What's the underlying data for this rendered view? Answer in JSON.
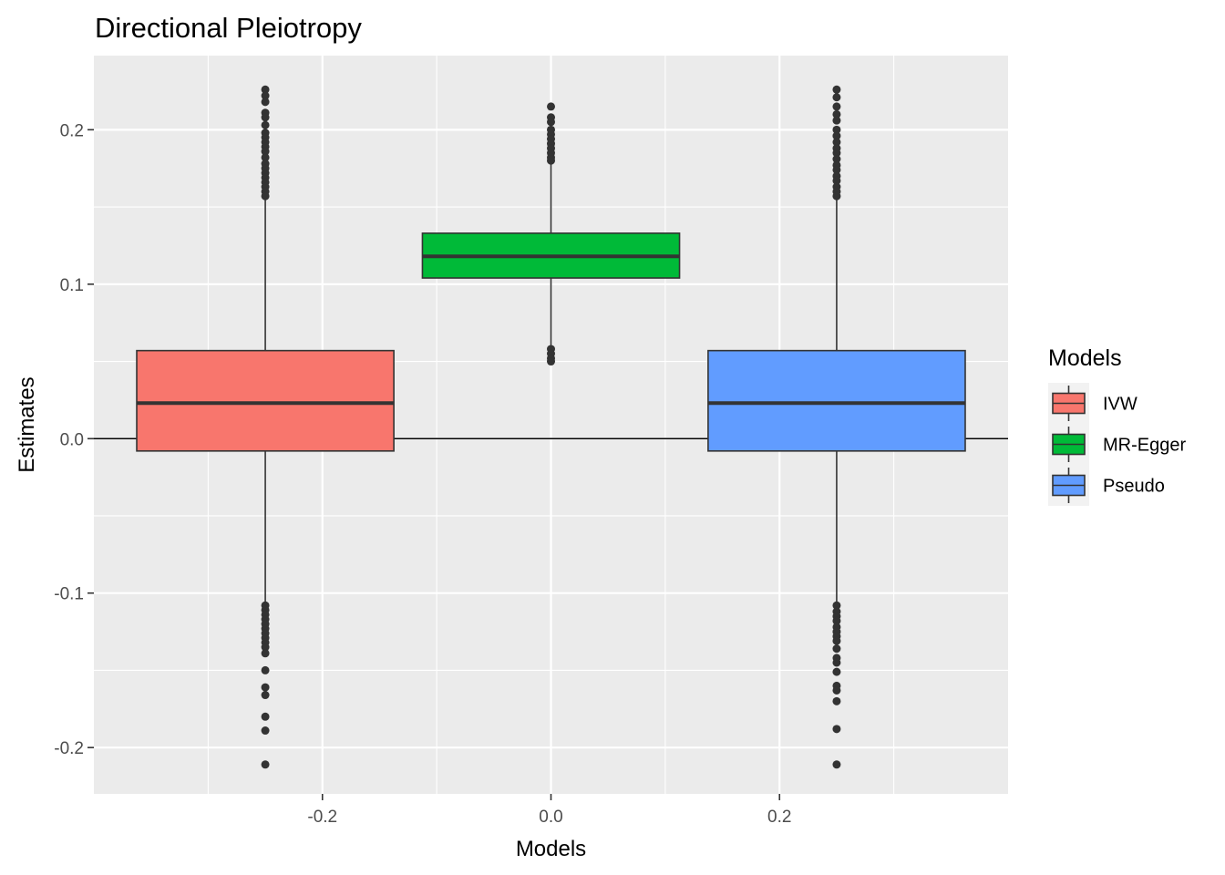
{
  "chart_data": {
    "type": "boxplot",
    "title": "Directional Pleiotropy",
    "xlabel": "Models",
    "ylabel": "Estimates",
    "xlim": [
      -0.4,
      0.4
    ],
    "ylim": [
      -0.23,
      0.248
    ],
    "x_ticks": [
      -0.2,
      0.0,
      0.2
    ],
    "x_tick_labels": [
      "-0.2",
      "0.0",
      "0.2"
    ],
    "y_ticks": [
      -0.2,
      -0.1,
      0.0,
      0.1,
      0.2
    ],
    "y_tick_labels": [
      "-0.2",
      "-0.1",
      "0.0",
      "0.1",
      "0.2"
    ],
    "grid": true,
    "hline": 0.0,
    "legend": {
      "title": "Models",
      "position": "right"
    },
    "series": [
      {
        "name": "IVW",
        "color": "#F8766D",
        "x_center": -0.25,
        "x_half_width": 0.1125,
        "q1": -0.008,
        "median": 0.023,
        "q3": 0.057,
        "whisker_low": -0.106,
        "whisker_high": 0.155,
        "outliers": [
          0.226,
          0.222,
          0.218,
          0.211,
          0.208,
          0.203,
          0.198,
          0.195,
          0.192,
          0.189,
          0.186,
          0.182,
          0.178,
          0.175,
          0.172,
          0.169,
          0.166,
          0.163,
          0.16,
          0.157,
          -0.108,
          -0.111,
          -0.114,
          -0.117,
          -0.12,
          -0.123,
          -0.126,
          -0.129,
          -0.132,
          -0.135,
          -0.139,
          -0.15,
          -0.161,
          -0.166,
          -0.18,
          -0.189,
          -0.211
        ]
      },
      {
        "name": "MR-Egger",
        "color": "#00BA38",
        "x_center": 0.0,
        "x_half_width": 0.1125,
        "q1": 0.104,
        "median": 0.118,
        "q3": 0.133,
        "whisker_low": 0.06,
        "whisker_high": 0.178,
        "outliers": [
          0.215,
          0.208,
          0.205,
          0.2,
          0.197,
          0.194,
          0.191,
          0.188,
          0.185,
          0.182,
          0.18,
          0.058,
          0.055,
          0.052,
          0.05
        ]
      },
      {
        "name": "Pseudo",
        "color": "#619CFF",
        "x_center": 0.25,
        "x_half_width": 0.1125,
        "q1": -0.008,
        "median": 0.023,
        "q3": 0.057,
        "whisker_low": -0.106,
        "whisker_high": 0.155,
        "outliers": [
          0.226,
          0.221,
          0.215,
          0.21,
          0.206,
          0.2,
          0.196,
          0.192,
          0.188,
          0.185,
          0.181,
          0.177,
          0.174,
          0.17,
          0.167,
          0.163,
          0.16,
          0.157,
          -0.108,
          -0.112,
          -0.115,
          -0.118,
          -0.122,
          -0.125,
          -0.128,
          -0.131,
          -0.136,
          -0.142,
          -0.145,
          -0.151,
          -0.16,
          -0.163,
          -0.17,
          -0.188,
          -0.211
        ]
      }
    ]
  }
}
